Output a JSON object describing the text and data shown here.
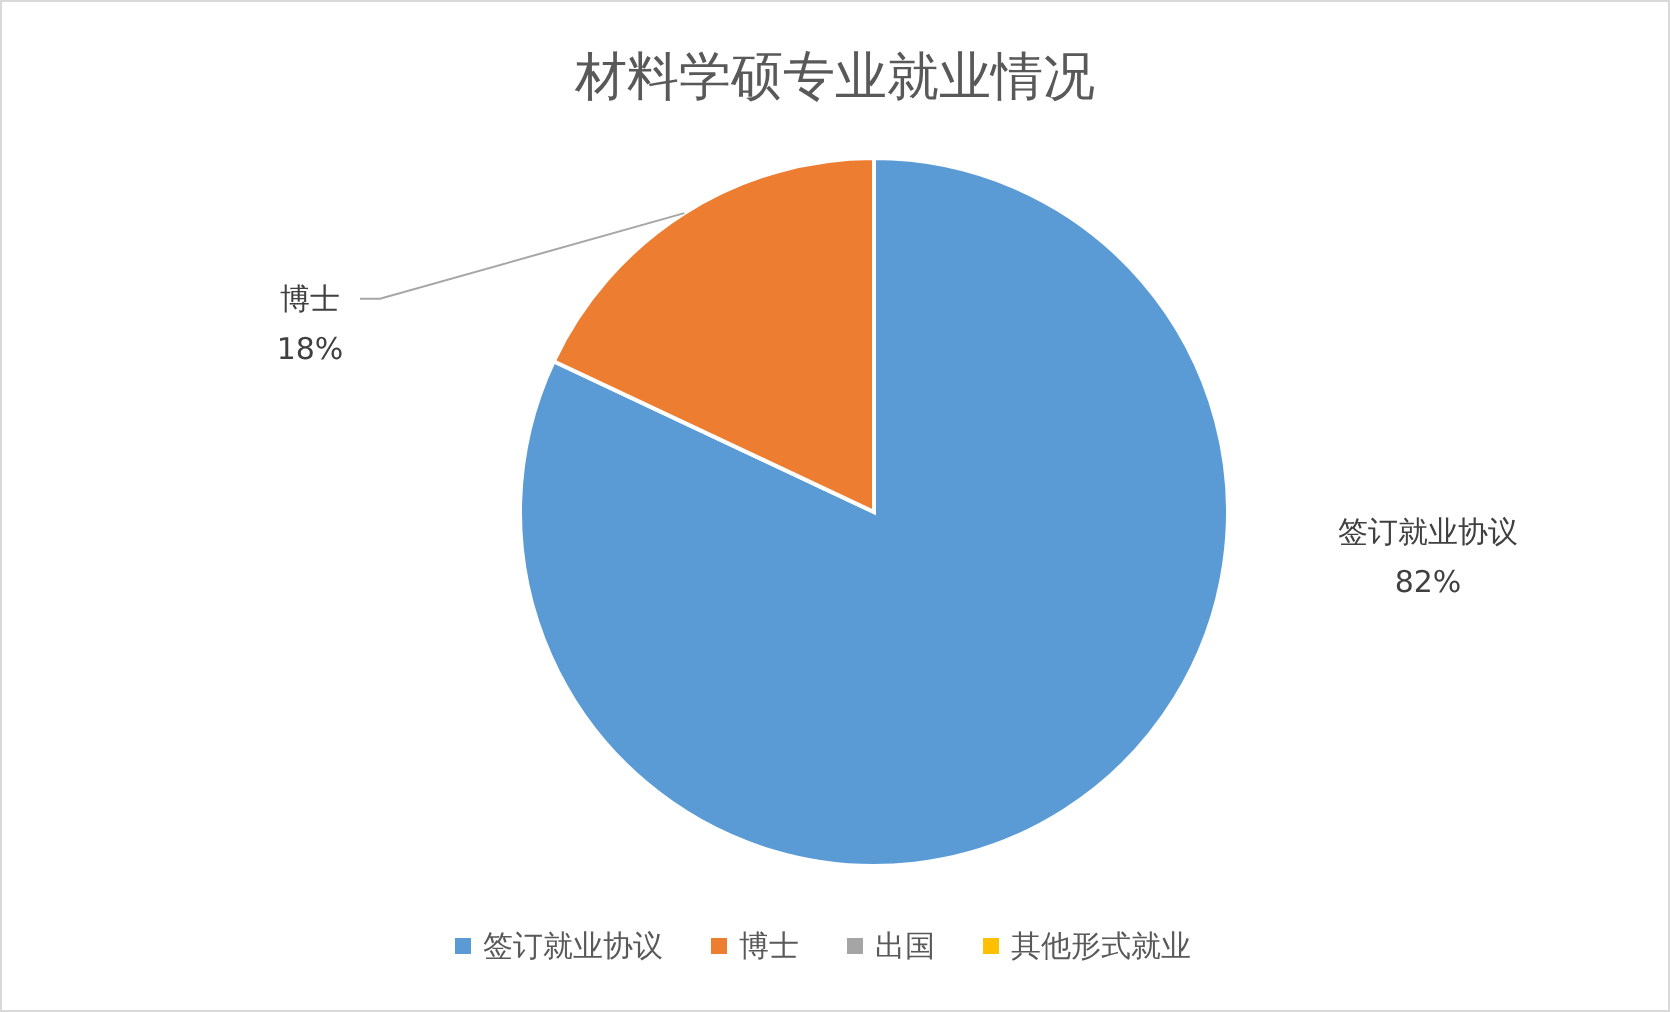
{
  "chart_data": {
    "type": "pie",
    "title": "材料学硕专业就业情况",
    "categories": [
      "签订就业协议",
      "博士",
      "出国",
      "其他形式就业"
    ],
    "values": [
      82,
      18,
      0,
      0
    ],
    "colors": [
      "#5b9bd5",
      "#ed7d31",
      "#a5a5a5",
      "#ffc000"
    ],
    "value_labels": [
      "82%",
      "18%",
      null,
      null
    ],
    "legend": "bottom"
  }
}
